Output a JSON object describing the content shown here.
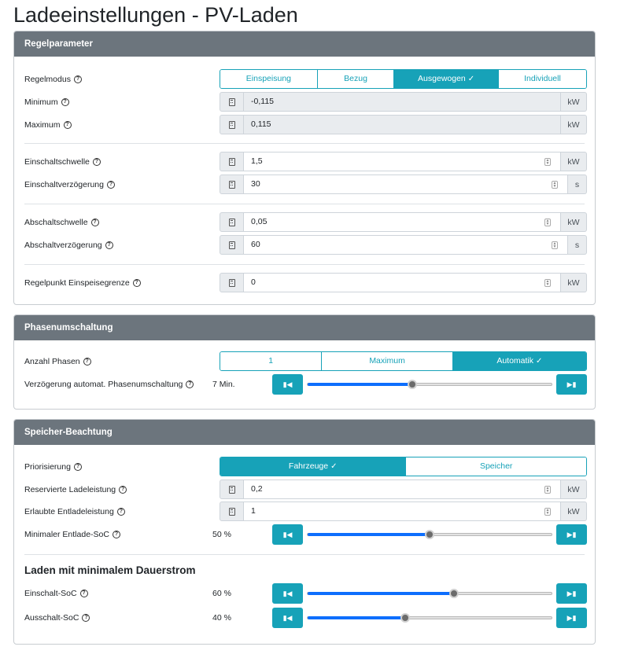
{
  "page": {
    "title": "Ladeeinstellungen - PV-Laden"
  },
  "regelparameter": {
    "header": "Regelparameter",
    "regelmodus": {
      "label": "Regelmodus",
      "options": [
        "Einspeisung",
        "Bezug",
        "Ausgewogen",
        "Individuell"
      ],
      "selected": "Ausgewogen"
    },
    "minimum": {
      "label": "Minimum",
      "value": "-0,115",
      "unit": "kW"
    },
    "maximum": {
      "label": "Maximum",
      "value": "0,115",
      "unit": "kW"
    },
    "einschaltschwelle": {
      "label": "Einschaltschwelle",
      "value": "1,5",
      "unit": "kW"
    },
    "einschaltverzoegerung": {
      "label": "Einschaltverzögerung",
      "value": "30",
      "unit": "s"
    },
    "abschaltschwelle": {
      "label": "Abschaltschwelle",
      "value": "0,05",
      "unit": "kW"
    },
    "abschaltverzoegerung": {
      "label": "Abschaltverzögerung",
      "value": "60",
      "unit": "s"
    },
    "regelpunkt": {
      "label": "Regelpunkt Einspeisegrenze",
      "value": "0",
      "unit": "kW"
    }
  },
  "phasenumschaltung": {
    "header": "Phasenumschaltung",
    "anzahl_phasen": {
      "label": "Anzahl Phasen",
      "options": [
        "1",
        "Maximum",
        "Automatik"
      ],
      "selected": "Automatik"
    },
    "verzoegerung": {
      "label": "Verzögerung automat. Phasenumschaltung",
      "value_text": "7 Min.",
      "level": 0.43
    }
  },
  "speicher": {
    "header": "Speicher-Beachtung",
    "priorisierung": {
      "label": "Priorisierung",
      "options": [
        "Fahrzeuge",
        "Speicher"
      ],
      "selected": "Fahrzeuge"
    },
    "reservierte": {
      "label": "Reservierte Ladeleistung",
      "value": "0,2",
      "unit": "kW"
    },
    "erlaubte": {
      "label": "Erlaubte Entladeleistung",
      "value": "1",
      "unit": "kW"
    },
    "min_entlade_soc": {
      "label": "Minimaler Entlade-SoC",
      "value_text": "50 %",
      "level": 0.5
    },
    "subheading": "Laden mit minimalem Dauerstrom",
    "einschalt_soc": {
      "label": "Einschalt-SoC",
      "value_text": "60 %",
      "level": 0.6
    },
    "ausschalt_soc": {
      "label": "Ausschalt-SoC",
      "value_text": "40 %",
      "level": 0.4
    }
  },
  "icons": {
    "check": "check-icon",
    "calculator": "calculator-icon",
    "help": "help-circle-icon",
    "step_back": "step-backward-icon",
    "step_forward": "step-forward-icon"
  },
  "colors": {
    "accent": "#17a2b8",
    "header": "#6c757d",
    "slider_fill": "#0d6efd"
  }
}
